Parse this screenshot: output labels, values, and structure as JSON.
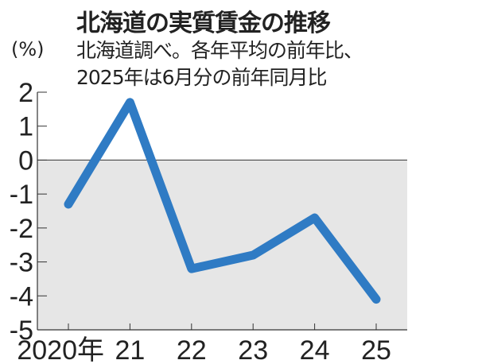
{
  "title": "北海道の実質賃金の推移",
  "subtitle_lines": [
    "北海道調べ。各年平均の前年比、",
    "2025年は6月分の前年同月比"
  ],
  "chart_data": {
    "type": "line",
    "title": "北海道の実質賃金の推移",
    "ylabel": "(%)",
    "x_tick_labels": [
      "2020年",
      "21",
      "22",
      "23",
      "24",
      "25"
    ],
    "x": [
      2020,
      2021,
      2022,
      2023,
      2024,
      2025
    ],
    "values": [
      -1.3,
      1.7,
      -3.2,
      -2.8,
      -1.7,
      -4.1
    ],
    "y_ticks": [
      2,
      1,
      0,
      -1,
      -2,
      -3,
      -4,
      -5
    ],
    "ylim": [
      -5,
      2
    ],
    "negative_region_shaded": true,
    "grid": false,
    "colors": {
      "line": "#2f7bc4",
      "negative_fill": "#e6e6e6"
    }
  }
}
